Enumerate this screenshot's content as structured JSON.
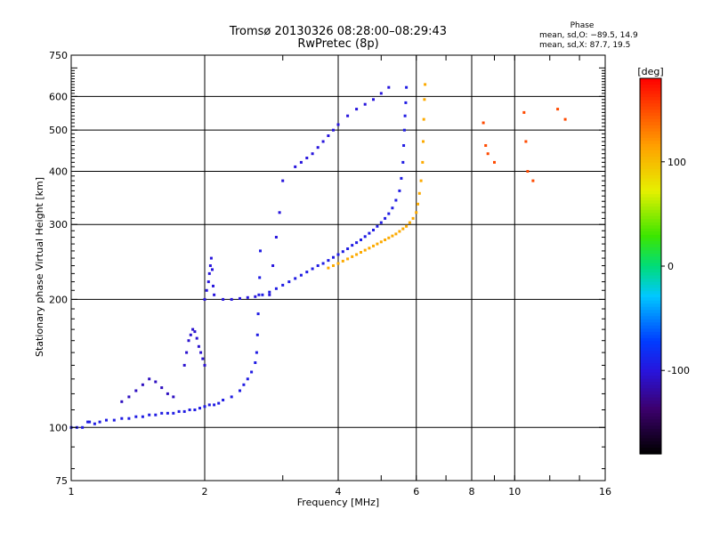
{
  "chart_data": {
    "type": "scatter",
    "title": "Tromsø 20130326 08:28:00–08:29:43",
    "subtitle": "RwPretec (8p)",
    "xlabel": "Frequency [MHz]",
    "ylabel": "Stationary phase Virtual Height [km]",
    "x_scale": "log",
    "y_scale": "log",
    "xlim": [
      1,
      16
    ],
    "ylim": [
      75,
      750
    ],
    "x_ticks": [
      1,
      2,
      4,
      6,
      8,
      10,
      16
    ],
    "y_ticks": [
      75,
      100,
      200,
      300,
      400,
      500,
      600,
      750
    ],
    "grid": true,
    "phase_stats": {
      "heading": "Phase",
      "line_o": "mean, sd,O: −89.5, 14.9",
      "line_x": "mean, sd,X: 87.7, 19.5"
    },
    "colorbar": {
      "label": "[deg]",
      "ticks": [
        100,
        0,
        -100
      ],
      "range": [
        -180,
        180
      ]
    },
    "series": [
      {
        "name": "",
        "phase_deg": -95,
        "x": [
          1.0,
          1.03,
          1.06,
          1.09,
          1.1,
          1.13,
          1.16,
          1.2,
          1.25,
          1.3,
          1.35,
          1.4,
          1.45,
          1.5,
          1.55,
          1.6,
          1.65,
          1.7,
          1.75,
          1.8,
          1.85,
          1.9,
          1.95,
          2.0,
          2.05,
          2.1,
          2.15,
          2.2,
          2.3,
          2.4,
          2.45,
          2.5,
          2.55,
          2.6,
          2.62,
          2.63,
          2.64,
          2.65,
          2.66,
          2.67
        ],
        "y": [
          100,
          100,
          100,
          103,
          103,
          102,
          103,
          104,
          104,
          105,
          105,
          106,
          106,
          107,
          107,
          108,
          108,
          108,
          109,
          109,
          110,
          110,
          111,
          112,
          113,
          113,
          114,
          116,
          118,
          122,
          126,
          130,
          135,
          142,
          150,
          165,
          185,
          205,
          225,
          260
        ]
      },
      {
        "name": "",
        "phase_deg": -95,
        "x": [
          2.7,
          2.8,
          2.9,
          3.0,
          3.1,
          3.2,
          3.3,
          3.4,
          3.5,
          3.6,
          3.7,
          3.8,
          3.9,
          4.0,
          4.1,
          4.2,
          4.3,
          4.4,
          4.5,
          4.6,
          4.7,
          4.8,
          4.9,
          5.0,
          5.1,
          5.2,
          5.3,
          5.4,
          5.5,
          5.55,
          5.6,
          5.62,
          5.64,
          5.66,
          5.68,
          5.7
        ],
        "y": [
          205,
          208,
          212,
          216,
          220,
          224,
          228,
          232,
          236,
          240,
          243,
          247,
          251,
          255,
          259,
          263,
          268,
          272,
          276,
          281,
          286,
          291,
          297,
          303,
          310,
          318,
          328,
          342,
          360,
          385,
          420,
          460,
          500,
          540,
          580,
          630
        ]
      },
      {
        "name": "",
        "phase_deg": 110,
        "x": [
          3.8,
          3.9,
          4.0,
          4.1,
          4.2,
          4.3,
          4.4,
          4.5,
          4.6,
          4.7,
          4.8,
          4.9,
          5.0,
          5.1,
          5.2,
          5.3,
          5.4,
          5.5,
          5.6,
          5.7,
          5.8,
          5.9,
          6.0,
          6.05,
          6.1,
          6.15,
          6.2,
          6.22,
          6.24,
          6.26,
          6.28
        ],
        "y": [
          237,
          240,
          243,
          246,
          249,
          252,
          255,
          258,
          261,
          264,
          267,
          270,
          273,
          276,
          279,
          282,
          285,
          289,
          293,
          297,
          303,
          310,
          320,
          335,
          355,
          380,
          420,
          470,
          530,
          590,
          640
        ]
      },
      {
        "name": "",
        "phase_deg": -100,
        "x": [
          2.0,
          2.02,
          2.04,
          2.05,
          2.06,
          2.07,
          2.08,
          2.09,
          2.1,
          2.2,
          2.3,
          2.4,
          2.5,
          2.6,
          2.8,
          2.85,
          2.9,
          2.95,
          3.0
        ],
        "y": [
          200,
          210,
          220,
          230,
          240,
          250,
          235,
          215,
          205,
          200,
          200,
          201,
          202,
          203,
          205,
          240,
          280,
          320,
          380
        ]
      },
      {
        "name": "",
        "phase_deg": -105,
        "x": [
          1.8,
          1.82,
          1.84,
          1.86,
          1.88,
          1.9,
          1.92,
          1.94,
          1.96,
          1.98,
          2.0
        ],
        "y": [
          140,
          150,
          160,
          165,
          170,
          168,
          162,
          155,
          150,
          145,
          140
        ]
      },
      {
        "name": "",
        "phase_deg": -100,
        "x": [
          3.2,
          3.3,
          3.4,
          3.5,
          3.6,
          3.7,
          3.8,
          3.9,
          4.0,
          4.2,
          4.4,
          4.6,
          4.8,
          5.0,
          5.2
        ],
        "y": [
          410,
          420,
          430,
          440,
          455,
          470,
          485,
          500,
          515,
          540,
          560,
          575,
          590,
          610,
          630
        ]
      },
      {
        "name": "",
        "phase_deg": -110,
        "x": [
          1.3,
          1.35,
          1.4,
          1.45,
          1.5,
          1.55,
          1.6,
          1.65,
          1.7
        ],
        "y": [
          115,
          118,
          122,
          126,
          130,
          128,
          124,
          120,
          118
        ]
      },
      {
        "name": "",
        "phase_deg": 150,
        "x": [
          8.5,
          8.6,
          8.7,
          9.0,
          10.5,
          10.6,
          10.7,
          11.0,
          12.5,
          13.0
        ],
        "y": [
          520,
          460,
          440,
          420,
          550,
          470,
          400,
          380,
          560,
          530
        ]
      }
    ]
  }
}
